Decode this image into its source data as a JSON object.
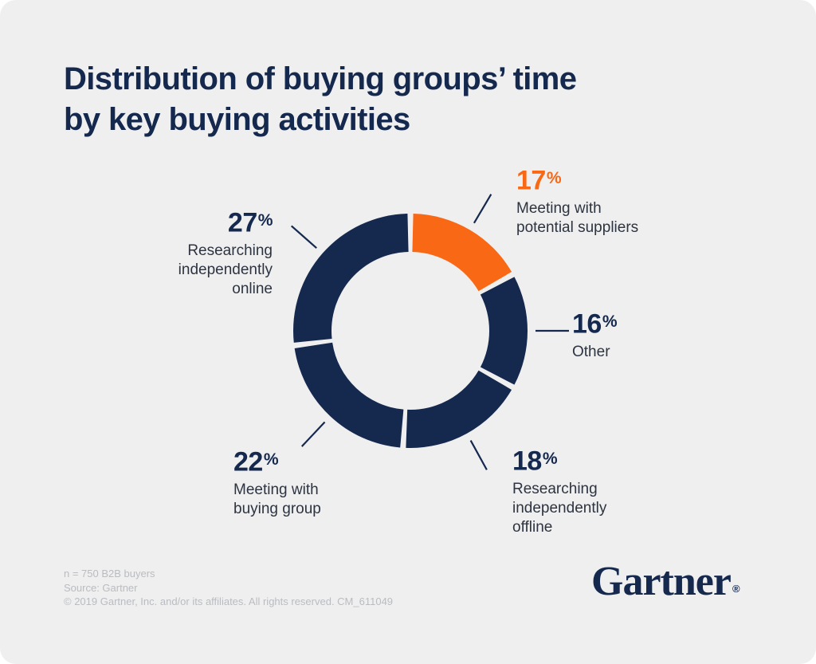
{
  "page": {
    "background": "#efeff0"
  },
  "title": {
    "line1": "Distribution of buying groups’ time",
    "line2": "by key buying activities"
  },
  "chart_data": {
    "type": "pie",
    "variant": "donut",
    "title": "Distribution of buying groups’ time by key buying activities",
    "unit": "%",
    "accent_color": "#f96815",
    "base_color": "#15284d",
    "segments": [
      {
        "id": "meeting-potential-suppliers",
        "label": "Meeting with\npotential suppliers",
        "value": 17,
        "pct": "17",
        "color": "#f96815"
      },
      {
        "id": "other",
        "label": "Other",
        "value": 16,
        "pct": "16",
        "color": "#15284d"
      },
      {
        "id": "researching-independently-offline",
        "label": "Researching\nindependently\noffline",
        "value": 18,
        "pct": "18",
        "color": "#15284d"
      },
      {
        "id": "meeting-buying-group",
        "label": "Meeting with\nbuying group",
        "value": 22,
        "pct": "22",
        "color": "#15284d"
      },
      {
        "id": "researching-independently-online",
        "label": "Researching\nindependently\nonline",
        "value": 27,
        "pct": "27",
        "color": "#15284d"
      }
    ]
  },
  "footer": {
    "lines": [
      "n = 750 B2B buyers",
      "Source: Gartner",
      "© 2019 Gartner, Inc. and/or its affiliates. All rights reserved. CM_611049"
    ]
  },
  "logo": {
    "text": "Gartner",
    "mark": "®"
  }
}
